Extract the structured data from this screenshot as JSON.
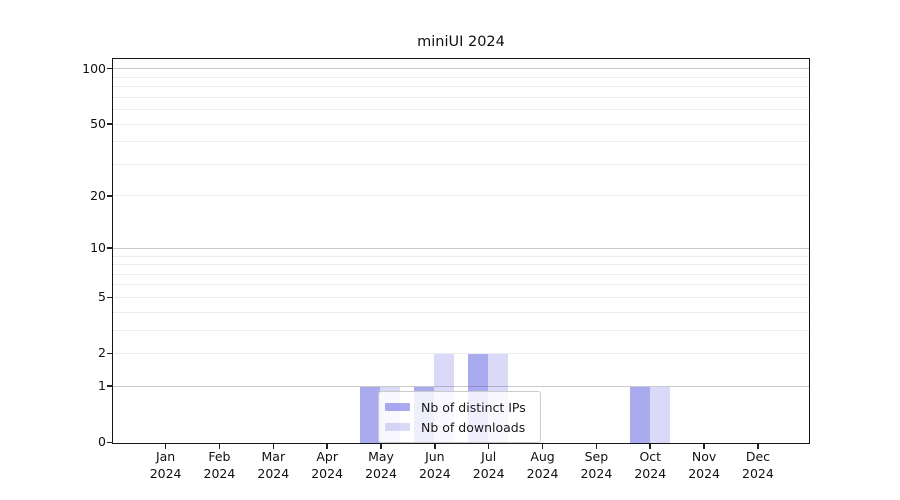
{
  "chart_data": {
    "type": "bar",
    "title": "miniUI 2024",
    "year_label": "2024",
    "categories": [
      "Jan",
      "Feb",
      "Mar",
      "Apr",
      "May",
      "Jun",
      "Jul",
      "Aug",
      "Sep",
      "Oct",
      "Nov",
      "Dec"
    ],
    "series": [
      {
        "name": "Nb of distinct IPs",
        "color": "rgba(85,85,223,0.5)",
        "values": [
          0,
          0,
          0,
          0,
          1,
          1,
          2,
          0,
          0,
          1,
          0,
          0
        ]
      },
      {
        "name": "Nb of downloads",
        "color": "rgba(85,85,223,0.22)",
        "values": [
          0,
          0,
          0,
          0,
          1,
          2,
          2,
          0,
          0,
          1,
          0,
          0
        ]
      }
    ],
    "yticks": [
      0,
      1,
      2,
      5,
      10,
      20,
      50,
      100
    ],
    "major_gridlines": [
      1,
      10,
      100
    ],
    "minor_gridlines": [
      2,
      3,
      4,
      5,
      6,
      7,
      8,
      9,
      20,
      30,
      40,
      50,
      60,
      70,
      80,
      90
    ],
    "scale": "log10(1+y)",
    "ylim": [
      0,
      112
    ],
    "xlabel": "",
    "ylabel": "",
    "grid": true,
    "legend_position": "inside-bottom-center",
    "colors": {
      "major_grid": "#c9c9c9",
      "minor_grid": "#ececec",
      "axis": "#151515",
      "background": "#ffffff"
    }
  }
}
